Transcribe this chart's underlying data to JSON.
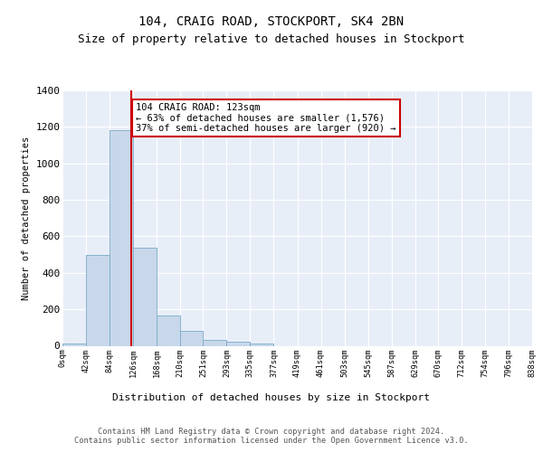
{
  "title": "104, CRAIG ROAD, STOCKPORT, SK4 2BN",
  "subtitle": "Size of property relative to detached houses in Stockport",
  "xlabel": "Distribution of detached houses by size in Stockport",
  "ylabel": "Number of detached properties",
  "bar_edges": [
    0,
    42,
    84,
    126,
    168,
    210,
    251,
    293,
    335,
    377,
    419,
    461,
    503,
    545,
    587,
    629,
    670,
    712,
    754,
    796,
    838
  ],
  "bar_heights": [
    10,
    500,
    1180,
    540,
    165,
    80,
    30,
    20,
    10,
    0,
    0,
    0,
    0,
    0,
    0,
    0,
    0,
    0,
    0,
    0
  ],
  "bar_color": "#c8d8ea",
  "bar_edge_color": "#7aaac8",
  "property_line_x": 123,
  "property_line_color": "#cc0000",
  "annotation_text": "104 CRAIG ROAD: 123sqm\n← 63% of detached houses are smaller (1,576)\n37% of semi-detached houses are larger (920) →",
  "annotation_box_color": "#ffffff",
  "annotation_box_edge": "#cc0000",
  "ylim": [
    0,
    1400
  ],
  "yticks": [
    0,
    200,
    400,
    600,
    800,
    1000,
    1200,
    1400
  ],
  "tick_labels": [
    "0sqm",
    "42sqm",
    "84sqm",
    "126sqm",
    "168sqm",
    "210sqm",
    "251sqm",
    "293sqm",
    "335sqm",
    "377sqm",
    "419sqm",
    "461sqm",
    "503sqm",
    "545sqm",
    "587sqm",
    "629sqm",
    "670sqm",
    "712sqm",
    "754sqm",
    "796sqm",
    "838sqm"
  ],
  "bg_color": "#e8eef8",
  "fig_bg_color": "#ffffff",
  "footer_text": "Contains HM Land Registry data © Crown copyright and database right 2024.\nContains public sector information licensed under the Open Government Licence v3.0.",
  "title_fontsize": 10,
  "subtitle_fontsize": 9
}
